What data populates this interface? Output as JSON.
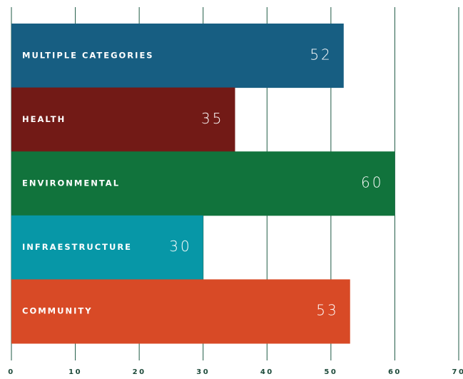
{
  "chart_data": {
    "type": "bar",
    "orientation": "horizontal",
    "categories": [
      "MULTIPLE CATEGORIES",
      "HEALTH",
      "ENVIRONMENTAL",
      "INFRAESTRUCTURE",
      "COMMUNITY"
    ],
    "values": [
      52,
      35,
      60,
      30,
      53
    ],
    "colors": [
      "#175e82",
      "#721a16",
      "#11733c",
      "#0797a7",
      "#d84a26"
    ],
    "xlim": [
      0,
      70
    ],
    "xticks": [
      0,
      10,
      20,
      30,
      40,
      50,
      60,
      70
    ],
    "grid": true
  }
}
